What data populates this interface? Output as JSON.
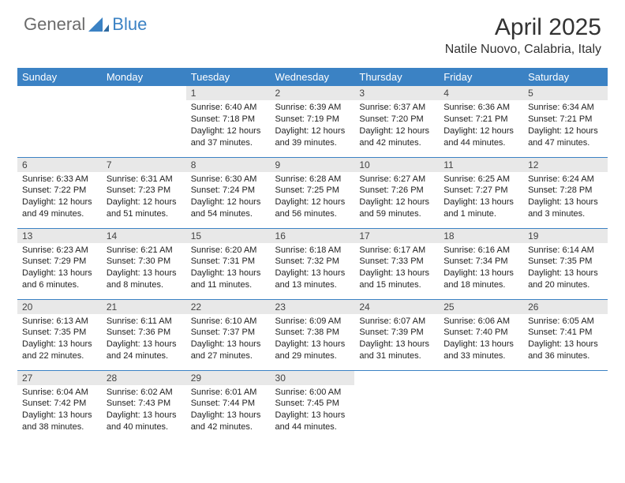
{
  "logo": {
    "general": "General",
    "blue": "Blue"
  },
  "title": "April 2025",
  "location": "Natile Nuovo, Calabria, Italy",
  "colors": {
    "header_bg": "#3b82c4",
    "header_text": "#ffffff",
    "daynum_bg": "#e8e8e8",
    "border": "#3b82c4",
    "logo_gray": "#6b6b6b",
    "logo_blue": "#3b82c4",
    "body_text": "#222222",
    "page_bg": "#ffffff"
  },
  "weekdays": [
    "Sunday",
    "Monday",
    "Tuesday",
    "Wednesday",
    "Thursday",
    "Friday",
    "Saturday"
  ],
  "weeks": [
    [
      null,
      null,
      {
        "n": "1",
        "sr": "6:40 AM",
        "ss": "7:18 PM",
        "dl": "12 hours and 37 minutes."
      },
      {
        "n": "2",
        "sr": "6:39 AM",
        "ss": "7:19 PM",
        "dl": "12 hours and 39 minutes."
      },
      {
        "n": "3",
        "sr": "6:37 AM",
        "ss": "7:20 PM",
        "dl": "12 hours and 42 minutes."
      },
      {
        "n": "4",
        "sr": "6:36 AM",
        "ss": "7:21 PM",
        "dl": "12 hours and 44 minutes."
      },
      {
        "n": "5",
        "sr": "6:34 AM",
        "ss": "7:21 PM",
        "dl": "12 hours and 47 minutes."
      }
    ],
    [
      {
        "n": "6",
        "sr": "6:33 AM",
        "ss": "7:22 PM",
        "dl": "12 hours and 49 minutes."
      },
      {
        "n": "7",
        "sr": "6:31 AM",
        "ss": "7:23 PM",
        "dl": "12 hours and 51 minutes."
      },
      {
        "n": "8",
        "sr": "6:30 AM",
        "ss": "7:24 PM",
        "dl": "12 hours and 54 minutes."
      },
      {
        "n": "9",
        "sr": "6:28 AM",
        "ss": "7:25 PM",
        "dl": "12 hours and 56 minutes."
      },
      {
        "n": "10",
        "sr": "6:27 AM",
        "ss": "7:26 PM",
        "dl": "12 hours and 59 minutes."
      },
      {
        "n": "11",
        "sr": "6:25 AM",
        "ss": "7:27 PM",
        "dl": "13 hours and 1 minute."
      },
      {
        "n": "12",
        "sr": "6:24 AM",
        "ss": "7:28 PM",
        "dl": "13 hours and 3 minutes."
      }
    ],
    [
      {
        "n": "13",
        "sr": "6:23 AM",
        "ss": "7:29 PM",
        "dl": "13 hours and 6 minutes."
      },
      {
        "n": "14",
        "sr": "6:21 AM",
        "ss": "7:30 PM",
        "dl": "13 hours and 8 minutes."
      },
      {
        "n": "15",
        "sr": "6:20 AM",
        "ss": "7:31 PM",
        "dl": "13 hours and 11 minutes."
      },
      {
        "n": "16",
        "sr": "6:18 AM",
        "ss": "7:32 PM",
        "dl": "13 hours and 13 minutes."
      },
      {
        "n": "17",
        "sr": "6:17 AM",
        "ss": "7:33 PM",
        "dl": "13 hours and 15 minutes."
      },
      {
        "n": "18",
        "sr": "6:16 AM",
        "ss": "7:34 PM",
        "dl": "13 hours and 18 minutes."
      },
      {
        "n": "19",
        "sr": "6:14 AM",
        "ss": "7:35 PM",
        "dl": "13 hours and 20 minutes."
      }
    ],
    [
      {
        "n": "20",
        "sr": "6:13 AM",
        "ss": "7:35 PM",
        "dl": "13 hours and 22 minutes."
      },
      {
        "n": "21",
        "sr": "6:11 AM",
        "ss": "7:36 PM",
        "dl": "13 hours and 24 minutes."
      },
      {
        "n": "22",
        "sr": "6:10 AM",
        "ss": "7:37 PM",
        "dl": "13 hours and 27 minutes."
      },
      {
        "n": "23",
        "sr": "6:09 AM",
        "ss": "7:38 PM",
        "dl": "13 hours and 29 minutes."
      },
      {
        "n": "24",
        "sr": "6:07 AM",
        "ss": "7:39 PM",
        "dl": "13 hours and 31 minutes."
      },
      {
        "n": "25",
        "sr": "6:06 AM",
        "ss": "7:40 PM",
        "dl": "13 hours and 33 minutes."
      },
      {
        "n": "26",
        "sr": "6:05 AM",
        "ss": "7:41 PM",
        "dl": "13 hours and 36 minutes."
      }
    ],
    [
      {
        "n": "27",
        "sr": "6:04 AM",
        "ss": "7:42 PM",
        "dl": "13 hours and 38 minutes."
      },
      {
        "n": "28",
        "sr": "6:02 AM",
        "ss": "7:43 PM",
        "dl": "13 hours and 40 minutes."
      },
      {
        "n": "29",
        "sr": "6:01 AM",
        "ss": "7:44 PM",
        "dl": "13 hours and 42 minutes."
      },
      {
        "n": "30",
        "sr": "6:00 AM",
        "ss": "7:45 PM",
        "dl": "13 hours and 44 minutes."
      },
      null,
      null,
      null
    ]
  ],
  "labels": {
    "sunrise": "Sunrise:",
    "sunset": "Sunset:",
    "daylight": "Daylight:"
  }
}
